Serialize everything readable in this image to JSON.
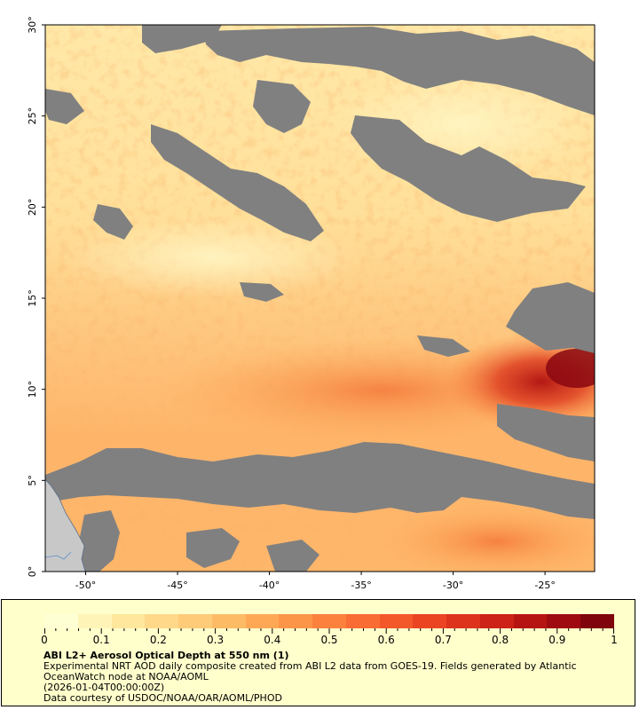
{
  "map": {
    "lon_ticks": [
      "-50°",
      "-45°",
      "-40°",
      "-35°",
      "-30°",
      "-25°"
    ],
    "lat_ticks": [
      "0°",
      "5°",
      "10°",
      "15°",
      "20°",
      "25°",
      "30°"
    ],
    "lon_range": [
      -52.2,
      -22.3
    ],
    "lat_range": [
      0,
      30
    ],
    "no_data_color": "#808080",
    "land_color": "#c8c8c8",
    "frame_color": "#000000"
  },
  "legend": {
    "colorbar_labels": [
      "0",
      "0.1",
      "0.2",
      "0.3",
      "0.4",
      "0.5",
      "0.6",
      "0.7",
      "0.8",
      "0.9",
      "1"
    ],
    "colorbar_colors": [
      "#ffffd4",
      "#fff4b8",
      "#ffe79d",
      "#ffd88a",
      "#fecb78",
      "#febb66",
      "#fea856",
      "#fd9549",
      "#fc813d",
      "#f96c33",
      "#f3582b",
      "#ea4423",
      "#dd321c",
      "#cc2217",
      "#b61412",
      "#9e0a10",
      "#7f040c"
    ],
    "title": "ABI L2+ Aerosol Optical Depth at 550 nm (1)",
    "description": "Experimental NRT AOD daily composite created from ABI L2 data from GOES-19. Fields generated by Atlantic OceanWatch node at NOAA/AOML",
    "date": "(2026-01-04T00:00:00Z)",
    "credit": "Data courtesy of USDOC/NOAA/OAR/AOML/PHOD"
  }
}
